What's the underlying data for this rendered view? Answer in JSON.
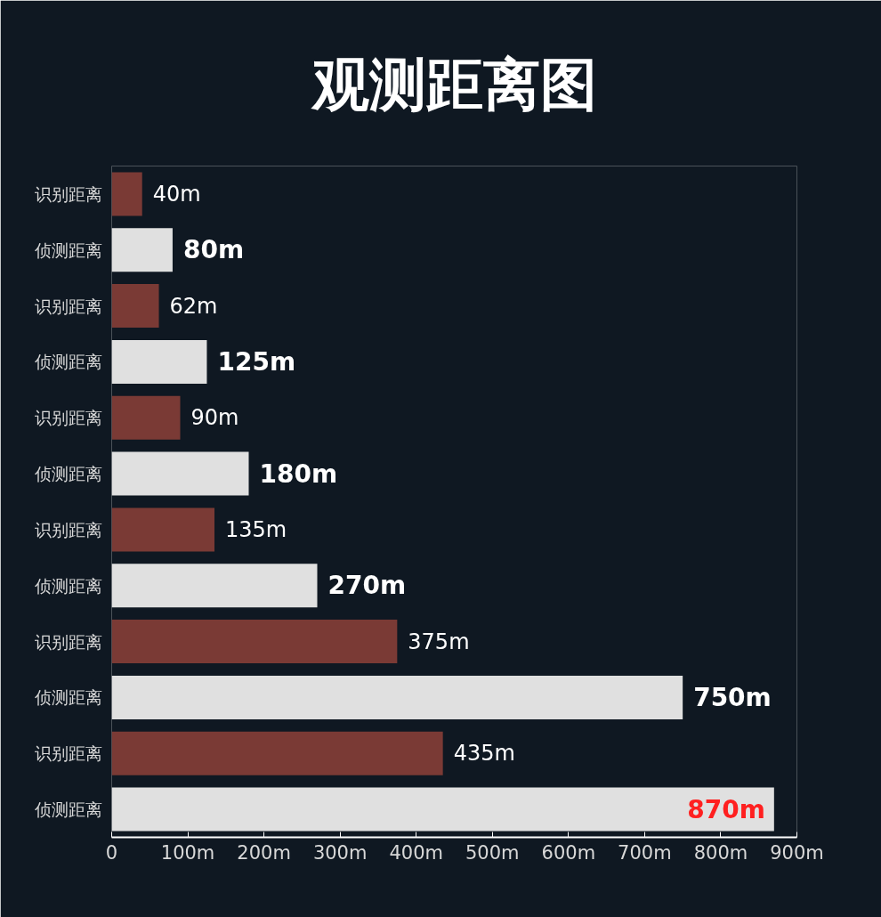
{
  "chart_data": {
    "type": "bar",
    "orientation": "horizontal",
    "title": "观测距离图",
    "categories": [
      "识别距离",
      "侦测距离",
      "识别距离",
      "侦测距离",
      "识别距离",
      "侦测距离",
      "识别距离",
      "侦测距离",
      "识别距离",
      "侦测距离",
      "识别距离",
      "侦测距离"
    ],
    "values": [
      40,
      80,
      62,
      125,
      90,
      180,
      135,
      270,
      375,
      750,
      435,
      870
    ],
    "colors": [
      "#7a3a35",
      "#e0e0e0",
      "#7a3a35",
      "#e0e0e0",
      "#7a3a35",
      "#e0e0e0",
      "#7a3a35",
      "#e0e0e0",
      "#7a3a35",
      "#e0e0e0",
      "#7a3a35",
      "#e0e0e0"
    ],
    "value_labels": [
      "40m",
      "80m",
      "62m",
      "125m",
      "90m",
      "180m",
      "135m",
      "270m",
      "375m",
      "750m",
      "435m",
      "870m"
    ],
    "xlim": [
      0,
      900
    ],
    "xticks": [
      0,
      {
        "value": 100,
        "label": "100m"
      },
      {
        "value": 200,
        "label": "200m"
      },
      {
        "value": 300,
        "label": "300m"
      },
      {
        "value": 400,
        "label": "400m"
      },
      {
        "value": 500,
        "label": "500m"
      },
      {
        "value": 600,
        "label": "600m"
      },
      {
        "value": 700,
        "label": "700m"
      },
      {
        "value": 800,
        "label": "800m"
      },
      {
        "value": 900,
        "label": "900m"
      }
    ],
    "grid": false
  }
}
